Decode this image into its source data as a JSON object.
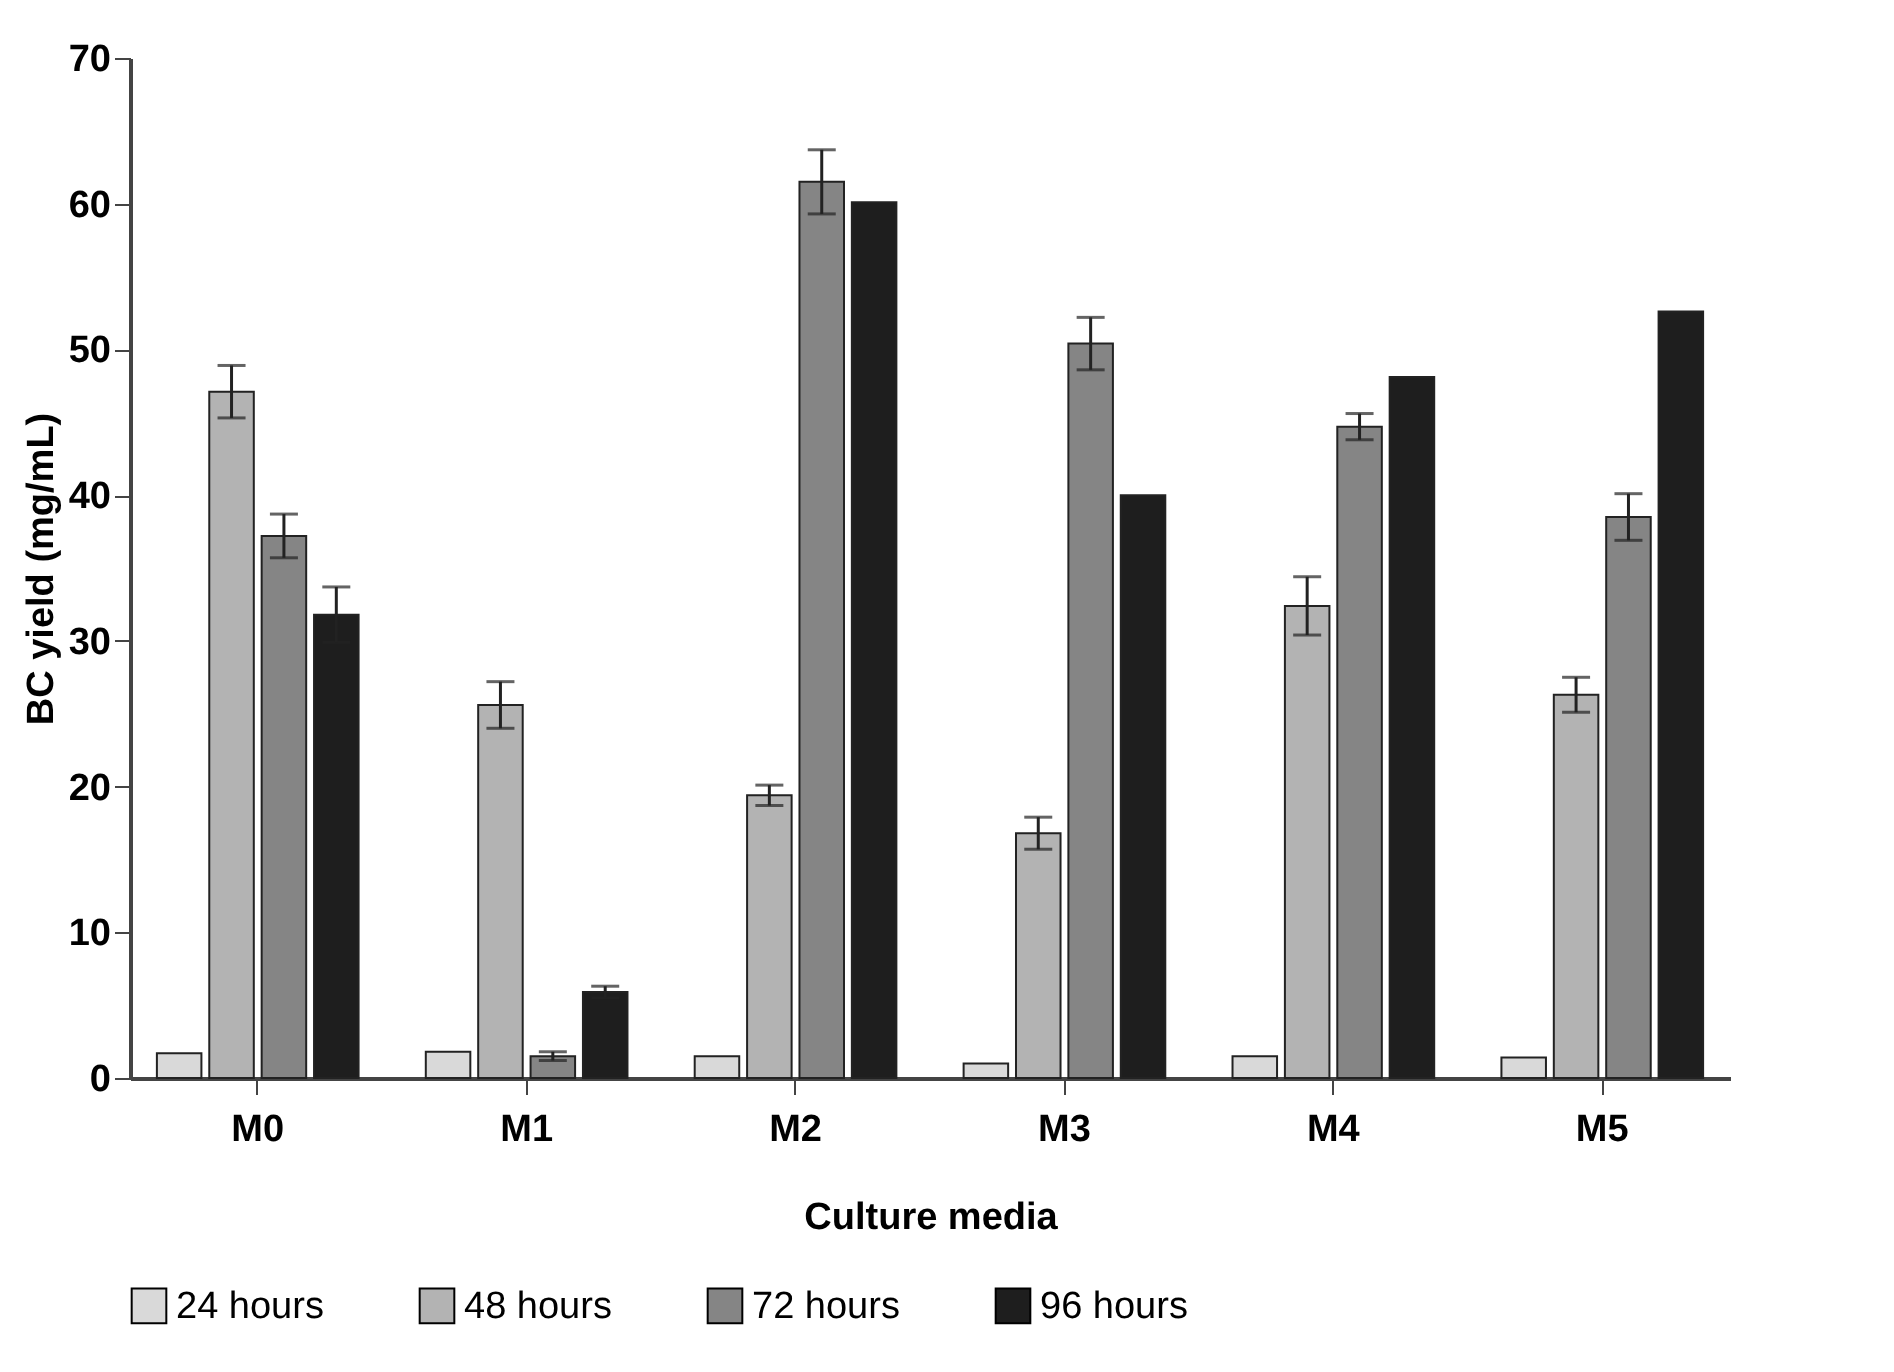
{
  "chart_data": {
    "type": "bar",
    "xlabel": "Culture media",
    "ylabel": "BC yield (mg/mL)",
    "categories": [
      "M0",
      "M1",
      "M2",
      "M3",
      "M4",
      "M5"
    ],
    "series": [
      {
        "name": "24 hours",
        "color": "#d9d9d9",
        "values": [
          1.7,
          1.8,
          1.5,
          1.0,
          1.5,
          1.4
        ],
        "errors": [
          null,
          null,
          null,
          null,
          null,
          null
        ]
      },
      {
        "name": "48 hours",
        "color": "#b3b3b3",
        "values": [
          47.1,
          25.6,
          19.4,
          16.8,
          32.4,
          26.3
        ],
        "errors": [
          1.8,
          1.6,
          0.7,
          1.1,
          2.0,
          1.2
        ]
      },
      {
        "name": "72 hours",
        "color": "#858585",
        "values": [
          37.2,
          1.5,
          61.5,
          50.4,
          44.7,
          38.5
        ],
        "errors": [
          1.5,
          0.3,
          2.2,
          1.8,
          0.9,
          1.6
        ]
      },
      {
        "name": "96 hours",
        "color": "#1e1e1e",
        "values": [
          31.8,
          5.9,
          60.1,
          40.0,
          48.1,
          52.6
        ],
        "errors": [
          1.9,
          0.4,
          null,
          null,
          null,
          null
        ]
      }
    ],
    "ylim": [
      0,
      70
    ],
    "yticks": [
      0,
      10,
      20,
      30,
      40,
      50,
      60,
      70
    ],
    "grid": false,
    "legend": "bottom"
  }
}
